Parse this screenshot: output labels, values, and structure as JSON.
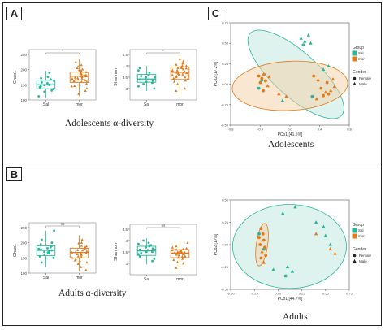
{
  "panels": {
    "A": {
      "letter": "A",
      "caption": "Adolescents α-diversity"
    },
    "B": {
      "letter": "B",
      "caption": "Adults α-diversity"
    },
    "C": {
      "letter": "C",
      "caption": "Adolescents"
    },
    "D": {
      "caption": "Adults"
    }
  },
  "colors": {
    "sal": "#2ab59a",
    "mor": "#e07a1c",
    "sal_fill": "#bfe8de",
    "mor_fill": "#f6cfa6"
  },
  "legend": {
    "group_title": "Group",
    "group_items": [
      "Sal",
      "mor"
    ],
    "gender_title": "Gender",
    "gender_items": [
      "Female",
      "Male"
    ]
  },
  "chart_data": [
    {
      "id": "A-chao1",
      "type": "box",
      "ylabel": "Chao1",
      "categories": [
        "Sal",
        "mor"
      ],
      "ylim": [
        100,
        250
      ],
      "yticks": [
        100,
        150,
        200,
        250
      ],
      "significance": "*",
      "boxes": [
        {
          "name": "Sal",
          "q1": 137,
          "median": 150,
          "q3": 165,
          "whisker_low": 108,
          "whisker_high": 196
        },
        {
          "name": "mor",
          "q1": 158,
          "median": 178,
          "q3": 192,
          "whisker_low": 112,
          "whisker_high": 235
        }
      ],
      "points": [
        [
          149,
          168,
          127,
          145,
          172,
          136,
          158,
          190,
          112,
          163,
          150,
          142,
          131,
          176,
          155
        ],
        [
          185,
          201,
          170,
          165,
          150,
          192,
          178,
          210,
          138,
          168,
          183,
          197,
          160,
          145,
          225,
          176,
          188,
          172,
          160,
          130,
          205,
          182,
          167,
          194,
          153,
          174,
          189,
          120,
          162,
          215,
          178,
          199,
          146,
          171,
          186
        ]
      ]
    },
    {
      "id": "A-shannon",
      "type": "box",
      "ylabel": "Shannon",
      "categories": [
        "Sal",
        "mor"
      ],
      "ylim": [
        2.5,
        4.5
      ],
      "yticks": [
        3.0,
        3.5,
        4.0,
        4.5
      ],
      "significance": "*",
      "boxes": [
        {
          "name": "Sal",
          "q1": 3.28,
          "median": 3.42,
          "q3": 3.62,
          "whisker_low": 2.9,
          "whisker_high": 4.0
        },
        {
          "name": "mor",
          "q1": 3.4,
          "median": 3.72,
          "q3": 3.95,
          "whisker_low": 2.7,
          "whisker_high": 4.4
        }
      ],
      "points": [
        [
          3.3,
          3.5,
          3.1,
          3.6,
          3.4,
          3.9,
          3.2,
          3.45,
          3.7,
          3.0,
          3.35,
          3.55,
          3.8,
          3.25,
          3.5
        ],
        [
          3.7,
          3.9,
          4.1,
          3.5,
          3.6,
          3.8,
          4.2,
          3.3,
          3.95,
          3.65,
          3.4,
          4.0,
          3.75,
          2.9,
          3.85,
          3.55,
          4.3,
          3.45,
          3.7,
          3.6,
          3.2,
          4.05,
          3.8,
          3.5,
          3.9,
          3.0,
          3.68,
          4.15,
          3.35,
          3.78,
          3.58,
          3.88,
          3.62,
          4.0,
          3.72
        ]
      ]
    },
    {
      "id": "B-chao1",
      "type": "box",
      "ylabel": "Chao1",
      "categories": [
        "Sal",
        "mor"
      ],
      "ylim": [
        100,
        250
      ],
      "yticks": [
        100,
        150,
        200,
        250
      ],
      "significance": "ns",
      "boxes": [
        {
          "name": "Sal",
          "q1": 158,
          "median": 175,
          "q3": 190,
          "whisker_low": 120,
          "whisker_high": 240
        },
        {
          "name": "mor",
          "q1": 150,
          "median": 168,
          "q3": 182,
          "whisker_low": 105,
          "whisker_high": 225
        }
      ],
      "points": [
        [
          170,
          185,
          160,
          195,
          178,
          150,
          210,
          165,
          180,
          240,
          172,
          155,
          190,
          168,
          182,
          135,
          200,
          175
        ],
        [
          160,
          175,
          150,
          185,
          140,
          165,
          200,
          130,
          172,
          155,
          180,
          120,
          190,
          168,
          145,
          210,
          158,
          176,
          135,
          182,
          162,
          110,
          170,
          152,
          188,
          142,
          166,
          198
        ]
      ]
    },
    {
      "id": "B-shannon",
      "type": "box",
      "ylabel": "Shannon",
      "categories": [
        "Sal",
        "mor"
      ],
      "ylim": [
        2.5,
        4.5
      ],
      "yticks": [
        3.0,
        3.5,
        4.0,
        4.5
      ],
      "significance": "ns",
      "boxes": [
        {
          "name": "Sal",
          "q1": 3.35,
          "median": 3.55,
          "q3": 3.75,
          "whisker_low": 2.95,
          "whisker_high": 4.1
        },
        {
          "name": "mor",
          "q1": 3.25,
          "median": 3.45,
          "q3": 3.6,
          "whisker_low": 2.75,
          "whisker_high": 4.0
        }
      ],
      "points": [
        [
          3.5,
          3.7,
          3.4,
          3.9,
          3.6,
          3.3,
          4.0,
          3.55,
          3.75,
          3.2,
          3.65,
          3.45,
          3.85,
          3.5,
          3.6,
          3.1,
          3.8,
          3.58
        ],
        [
          3.4,
          3.5,
          3.2,
          3.6,
          3.35,
          3.7,
          3.0,
          3.45,
          3.55,
          3.25,
          3.9,
          3.3,
          3.48,
          2.8,
          3.62,
          3.38,
          3.52,
          3.15,
          3.42,
          3.58,
          3.05,
          3.75,
          3.44,
          3.32,
          3.5,
          3.28,
          3.66,
          3.4
        ]
      ]
    },
    {
      "id": "C-pcoa",
      "type": "scatter",
      "xlabel": "PCo1 [41.5%]",
      "ylabel": "PCo2 [17.2%]",
      "xlim": [
        -0.8,
        0.8
      ],
      "ylim": [
        -0.5,
        0.75
      ],
      "xticks": [
        -0.8,
        -0.4,
        0.0,
        0.4,
        0.8
      ],
      "yticks": [
        -0.5,
        -0.25,
        0.0,
        0.25,
        0.5,
        0.75
      ],
      "xtick_labels": [
        "-0.8",
        "-0.4",
        "0.0",
        "0.4",
        "0.8"
      ],
      "ytick_labels": [
        "-0.50",
        "-0.25",
        "0.00",
        "0.25",
        "0.50",
        "0.75"
      ],
      "ellipses": [
        {
          "group": "Sal",
          "cx": 0.08,
          "cy": 0.12,
          "rx": 0.3,
          "ry": 0.75,
          "angle": -48
        },
        {
          "group": "mor",
          "cx": 0.0,
          "cy": -0.02,
          "rx": 0.78,
          "ry": 0.3,
          "angle": -3
        }
      ],
      "points": [
        {
          "g": "Sal",
          "s": "Male",
          "x": 0.15,
          "y": 0.56
        },
        {
          "g": "Sal",
          "s": "Male",
          "x": 0.2,
          "y": 0.52
        },
        {
          "g": "Sal",
          "s": "Male",
          "x": 0.25,
          "y": 0.6
        },
        {
          "g": "Sal",
          "s": "Female",
          "x": 0.18,
          "y": 0.48
        },
        {
          "g": "Sal",
          "s": "Male",
          "x": 0.28,
          "y": 0.5
        },
        {
          "g": "Sal",
          "s": "Male",
          "x": 0.45,
          "y": 0.18
        },
        {
          "g": "Sal",
          "s": "Male",
          "x": 0.52,
          "y": 0.22
        },
        {
          "g": "Sal",
          "s": "Female",
          "x": 0.3,
          "y": -0.15
        },
        {
          "g": "Sal",
          "s": "Male",
          "x": -0.1,
          "y": -0.2
        },
        {
          "g": "Sal",
          "s": "Female",
          "x": -0.38,
          "y": 0.05
        },
        {
          "g": "Sal",
          "s": "Female",
          "x": -0.42,
          "y": -0.05
        },
        {
          "g": "mor",
          "s": "Female",
          "x": -0.42,
          "y": 0.1
        },
        {
          "g": "mor",
          "s": "Female",
          "x": -0.38,
          "y": 0.07
        },
        {
          "g": "mor",
          "s": "Female",
          "x": -0.35,
          "y": 0.12
        },
        {
          "g": "mor",
          "s": "Female",
          "x": -0.4,
          "y": 0.02
        },
        {
          "g": "mor",
          "s": "Female",
          "x": -0.33,
          "y": 0.04
        },
        {
          "g": "mor",
          "s": "Male",
          "x": -0.3,
          "y": -0.02
        },
        {
          "g": "mor",
          "s": "Female",
          "x": -0.36,
          "y": -0.08
        },
        {
          "g": "mor",
          "s": "Male",
          "x": -0.28,
          "y": 0.09
        },
        {
          "g": "mor",
          "s": "Male",
          "x": -0.15,
          "y": -0.12
        },
        {
          "g": "mor",
          "s": "Male",
          "x": -0.05,
          "y": -0.15
        },
        {
          "g": "mor",
          "s": "Female",
          "x": 0.32,
          "y": 0.1
        },
        {
          "g": "mor",
          "s": "Male",
          "x": 0.38,
          "y": 0.05
        },
        {
          "g": "mor",
          "s": "Female",
          "x": 0.42,
          "y": -0.05
        },
        {
          "g": "mor",
          "s": "Male",
          "x": 0.48,
          "y": -0.1
        },
        {
          "g": "mor",
          "s": "Female",
          "x": 0.5,
          "y": 0.02
        },
        {
          "g": "mor",
          "s": "Male",
          "x": 0.55,
          "y": -0.08
        },
        {
          "g": "mor",
          "s": "Male",
          "x": 0.6,
          "y": -0.03
        },
        {
          "g": "mor",
          "s": "Female",
          "x": 0.45,
          "y": -0.14
        },
        {
          "g": "mor",
          "s": "Male",
          "x": 0.36,
          "y": -0.18
        },
        {
          "g": "mor",
          "s": "Female",
          "x": 0.52,
          "y": -0.12
        },
        {
          "g": "mor",
          "s": "Male",
          "x": 0.58,
          "y": 0.06
        }
      ]
    },
    {
      "id": "D-pcoa",
      "type": "scatter",
      "xlabel": "PCo1 [44.7%]",
      "ylabel": "PCo2 [17%]",
      "xlim": [
        -0.5,
        0.75
      ],
      "ylim": [
        -0.5,
        0.5
      ],
      "xticks": [
        -0.5,
        -0.25,
        0.0,
        0.25,
        0.5,
        0.75
      ],
      "yticks": [
        -0.5,
        -0.25,
        0.0,
        0.25,
        0.5
      ],
      "xtick_labels": [
        "-0.50",
        "-0.25",
        "0.00",
        "0.25",
        "0.50",
        "0.75"
      ],
      "ytick_labels": [
        "-0.50",
        "-0.25",
        "0.00",
        "0.25",
        "0.50"
      ],
      "ellipses": [
        {
          "group": "Sal",
          "cx": 0.12,
          "cy": -0.02,
          "rx": 0.6,
          "ry": 0.47,
          "angle": 0
        },
        {
          "group": "mor",
          "cx": -0.17,
          "cy": 0.0,
          "rx": 0.06,
          "ry": 0.24,
          "angle": 8
        }
      ],
      "points": [
        {
          "g": "Sal",
          "s": "Male",
          "x": 0.05,
          "y": 0.35
        },
        {
          "g": "Sal",
          "s": "Male",
          "x": 0.18,
          "y": 0.42
        },
        {
          "g": "Sal",
          "s": "Male",
          "x": 0.4,
          "y": 0.25
        },
        {
          "g": "Sal",
          "s": "Male",
          "x": 0.48,
          "y": 0.2
        },
        {
          "g": "Sal",
          "s": "Male",
          "x": 0.5,
          "y": 0.1
        },
        {
          "g": "Sal",
          "s": "Male",
          "x": 0.55,
          "y": 0.0
        },
        {
          "g": "Sal",
          "s": "Male",
          "x": 0.1,
          "y": -0.25
        },
        {
          "g": "Sal",
          "s": "Male",
          "x": 0.15,
          "y": -0.3
        },
        {
          "g": "Sal",
          "s": "Female",
          "x": 0.08,
          "y": -0.35
        },
        {
          "g": "Sal",
          "s": "Male",
          "x": -0.05,
          "y": -0.28
        },
        {
          "g": "Sal",
          "s": "Female",
          "x": -0.2,
          "y": 0.12
        },
        {
          "g": "Sal",
          "s": "Female",
          "x": -0.15,
          "y": -0.05
        },
        {
          "g": "mor",
          "s": "Female",
          "x": -0.18,
          "y": 0.18
        },
        {
          "g": "mor",
          "s": "Female",
          "x": -0.16,
          "y": 0.12
        },
        {
          "g": "mor",
          "s": "Female",
          "x": -0.2,
          "y": 0.08
        },
        {
          "g": "mor",
          "s": "Female",
          "x": -0.15,
          "y": 0.05
        },
        {
          "g": "mor",
          "s": "Female",
          "x": -0.19,
          "y": 0.0
        },
        {
          "g": "mor",
          "s": "Female",
          "x": -0.14,
          "y": -0.03
        },
        {
          "g": "mor",
          "s": "Male",
          "x": -0.17,
          "y": -0.08
        },
        {
          "g": "mor",
          "s": "Female",
          "x": -0.13,
          "y": -0.12
        },
        {
          "g": "mor",
          "s": "Female",
          "x": -0.18,
          "y": -0.15
        },
        {
          "g": "mor",
          "s": "Male",
          "x": -0.15,
          "y": -0.2
        },
        {
          "g": "mor",
          "s": "Male",
          "x": 0.4,
          "y": 0.12
        },
        {
          "g": "mor",
          "s": "Male",
          "x": 0.55,
          "y": -0.05
        },
        {
          "g": "mor",
          "s": "Male",
          "x": 0.6,
          "y": -0.1
        }
      ]
    }
  ]
}
